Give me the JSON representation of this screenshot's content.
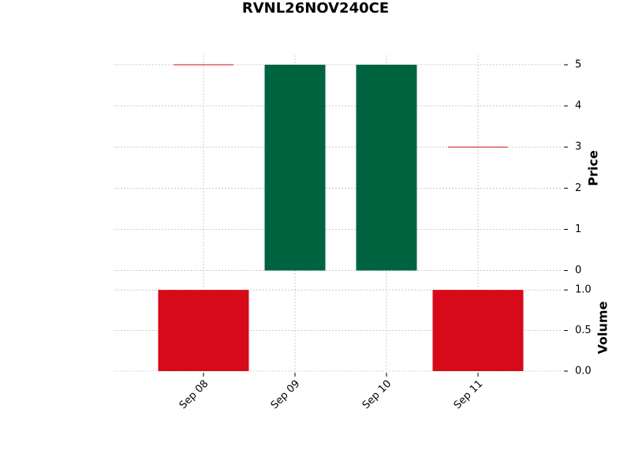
{
  "chart_data": {
    "type": "candlestick",
    "title": "RVNL26NOV240CE",
    "categories": [
      "Sep 08",
      "Sep 09",
      "Sep 10",
      "Sep 11"
    ],
    "open": [
      5,
      0,
      0,
      3
    ],
    "high": [
      5,
      5,
      5,
      3
    ],
    "low": [
      5,
      0,
      0,
      3
    ],
    "close": [
      5,
      5,
      5,
      3
    ],
    "up_color": "#006340",
    "down_color": "#d60a18",
    "ylabel": "Price",
    "ylim": [
      -0.2,
      5.23
    ],
    "yticks": [
      0,
      1,
      2,
      3,
      4,
      5
    ],
    "volume": {
      "ylabel": "Volume",
      "values": [
        1,
        0,
        0,
        1
      ],
      "ylim": [
        0,
        1.07
      ],
      "yticks": [
        {
          "value": 0,
          "label": "0.0"
        },
        {
          "value": 0.5,
          "label": "0.5"
        },
        {
          "value": 1,
          "label": "1.0"
        }
      ]
    },
    "grid": true
  }
}
